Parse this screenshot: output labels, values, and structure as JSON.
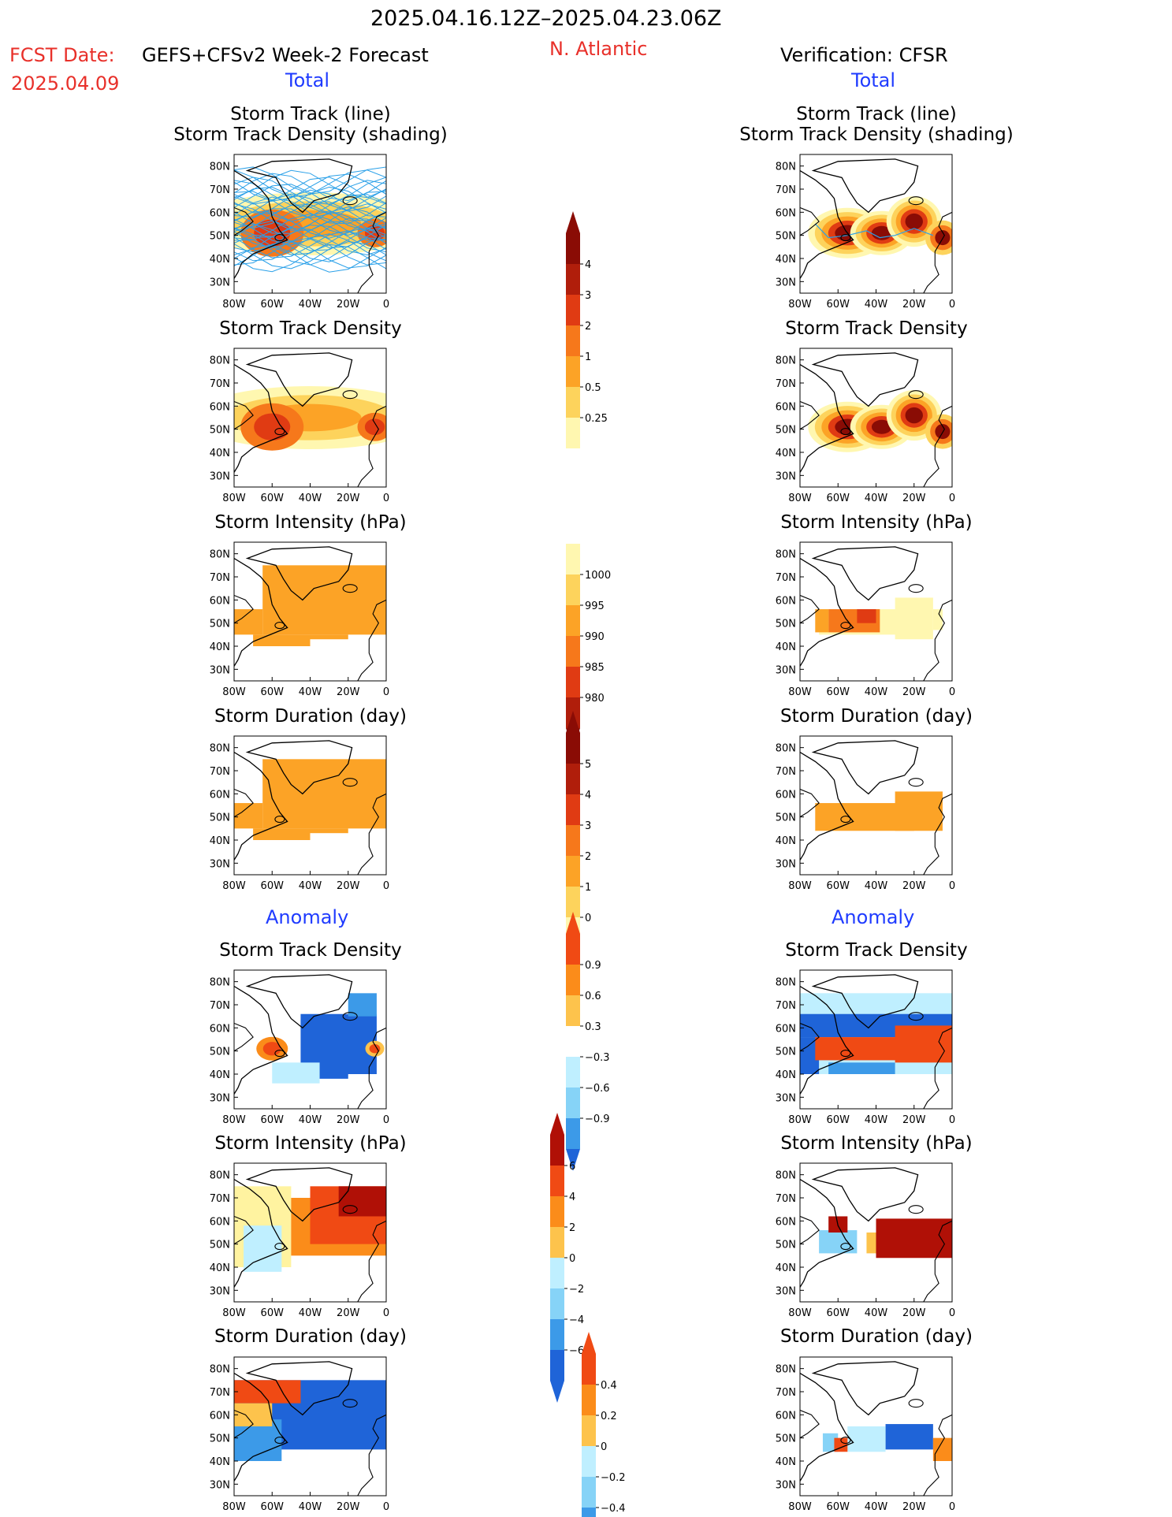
{
  "header": {
    "period": "2025.04.16.12Z–2025.04.23.06Z",
    "fcst_label": "FCST Date:",
    "fcst_model": "GEFS+CFSv2 Week-2 Forecast",
    "fcst_date": "2025.04.09",
    "region": "N. Atlantic",
    "verification": "Verification: CFSR"
  },
  "columns": {
    "left_total": "Total",
    "right_total": "Total",
    "left_anomaly": "Anomaly",
    "right_anomaly": "Anomaly"
  },
  "panel_titles": {
    "track_line": "Storm Track (line)",
    "track_density_shading": "Storm Track Density (shading)",
    "track_density": "Storm Track Density",
    "intensity": "Storm Intensity (hPa)",
    "duration": "Storm Duration (day)"
  },
  "axes": {
    "lat_labels": [
      "80N",
      "70N",
      "60N",
      "50N",
      "40N",
      "30N"
    ],
    "lon_labels": [
      "80W",
      "60W",
      "40W",
      "20W",
      "0"
    ]
  },
  "colorbars": {
    "density": [
      "4",
      "3",
      "2",
      "1",
      "0.5",
      "0.25"
    ],
    "intensity": [
      "1000",
      "995",
      "990",
      "985",
      "980"
    ],
    "duration": [
      "5",
      "4",
      "3",
      "2",
      "1",
      "0"
    ],
    "anom_density": [
      "0.9",
      "0.6",
      "0.3",
      "−0.3",
      "−0.6",
      "−0.9"
    ],
    "anom_intensity": [
      "6",
      "4",
      "2",
      "0",
      "−2",
      "−4",
      "−6"
    ],
    "anom_duration": [
      "0.4",
      "0.2",
      "0",
      "−0.2",
      "−0.4"
    ]
  },
  "colors": {
    "pos_scale": [
      "#fff7b0",
      "#fdd35c",
      "#fca326",
      "#f6781b",
      "#e03b13",
      "#b01e0b",
      "#8a0c05"
    ],
    "anom_pos": [
      "#fff3a0",
      "#fdc34c",
      "#fb8c1a",
      "#f04a14",
      "#b01006"
    ],
    "anom_neg": [
      "#bfefff",
      "#86d3f7",
      "#3c9ae8",
      "#1f64d8"
    ]
  }
}
